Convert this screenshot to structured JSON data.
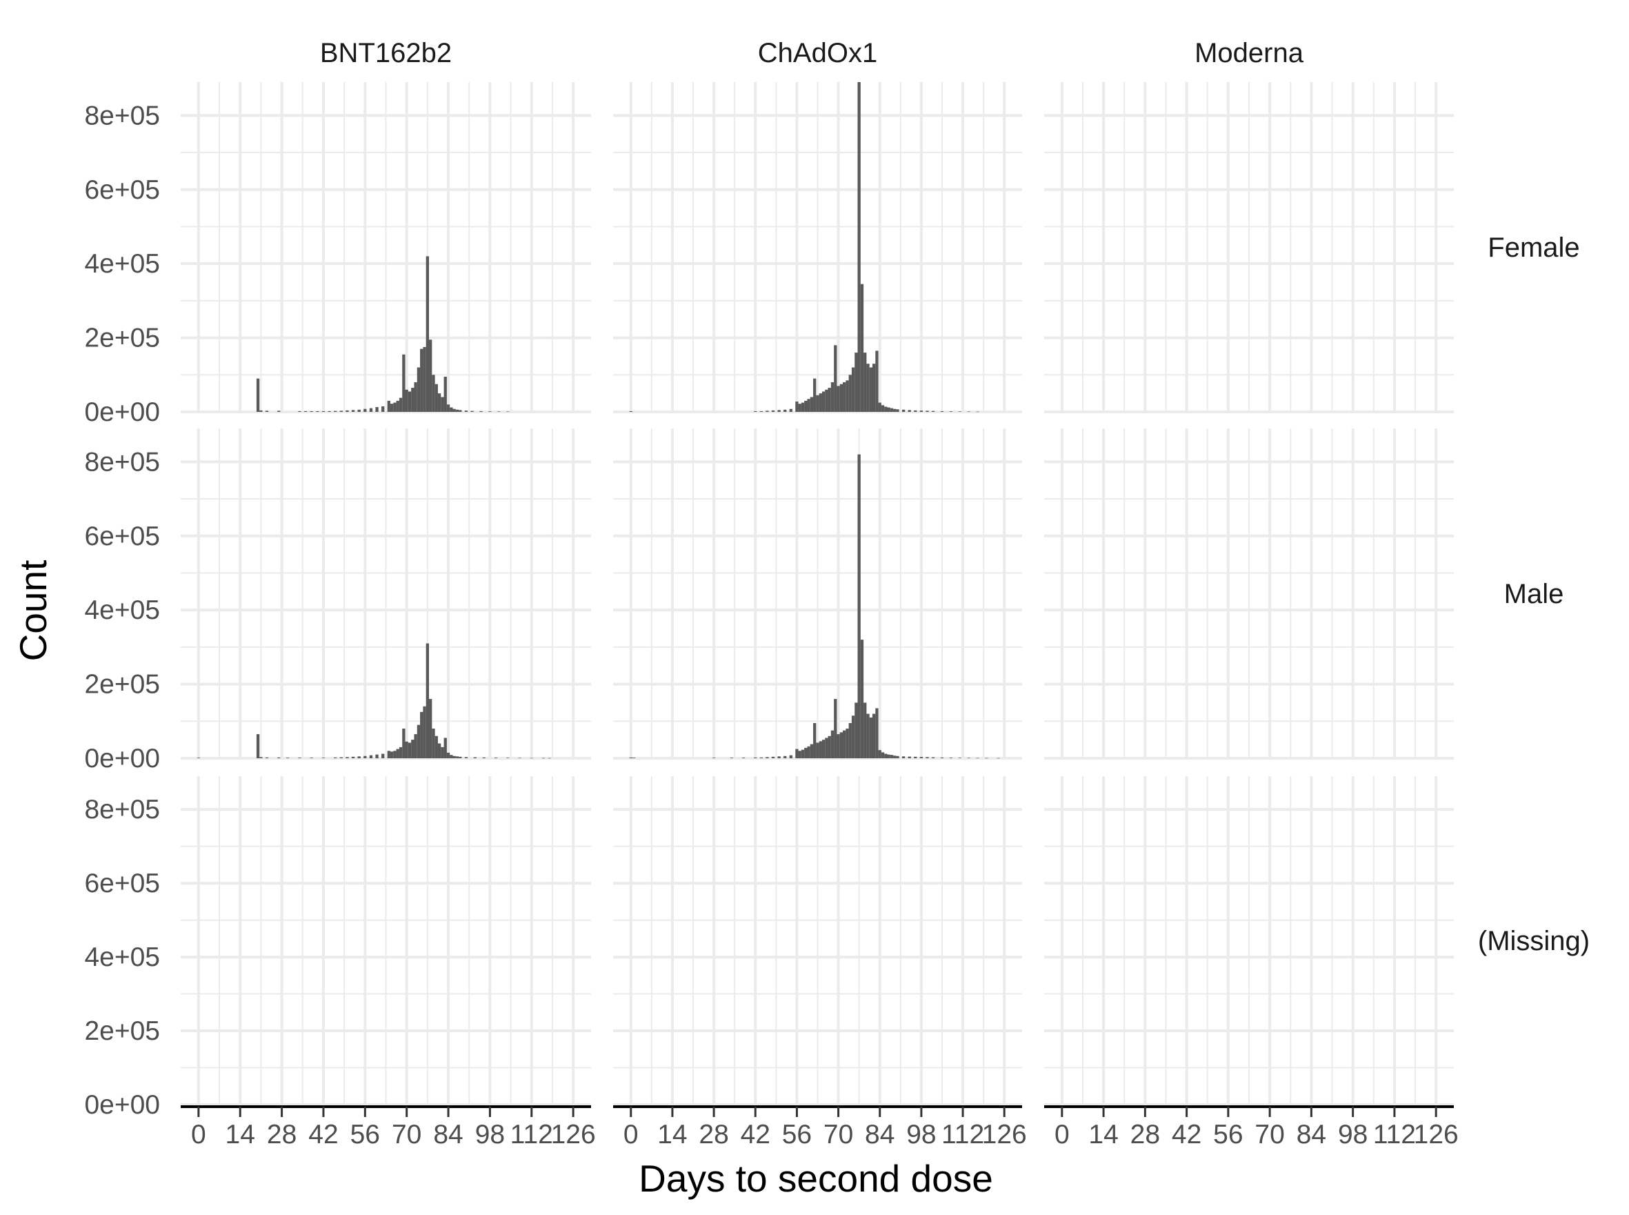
{
  "chart_data": {
    "type": "bar",
    "layout": "facet-grid",
    "xlabel": "Days to second dose",
    "ylabel": "Count",
    "x_ticks": [
      0,
      14,
      28,
      42,
      56,
      70,
      84,
      98,
      112,
      126
    ],
    "x_tick_labels": [
      "0",
      "14",
      "28",
      "42",
      "56",
      "70",
      "84",
      "98",
      "112",
      "126"
    ],
    "xlim": [
      -6,
      132
    ],
    "y_ticks": [
      0,
      200000,
      400000,
      600000,
      800000
    ],
    "y_tick_labels": [
      "0e+00",
      "2e+05",
      "4e+05",
      "6e+05",
      "8e+05"
    ],
    "ylim": [
      0,
      890000
    ],
    "grid": true,
    "column_labels": [
      "BNT162b2",
      "ChAdOx1",
      "Moderna"
    ],
    "row_labels": [
      "Female",
      "Male",
      "(Missing)"
    ],
    "bar_color": "#595959",
    "panels": [
      {
        "column": "BNT162b2",
        "row": "Female",
        "bins": [
          [
            20,
            90000
          ],
          [
            21,
            4000
          ],
          [
            23,
            3000
          ],
          [
            27,
            3000
          ],
          [
            34,
            2000
          ],
          [
            36,
            2000
          ],
          [
            38,
            2000
          ],
          [
            40,
            2000
          ],
          [
            42,
            2000
          ],
          [
            44,
            2000
          ],
          [
            46,
            2500
          ],
          [
            48,
            3000
          ],
          [
            50,
            4000
          ],
          [
            52,
            5000
          ],
          [
            54,
            6000
          ],
          [
            56,
            8000
          ],
          [
            58,
            10000
          ],
          [
            60,
            13000
          ],
          [
            62,
            15000
          ],
          [
            64,
            30000
          ],
          [
            65,
            22000
          ],
          [
            66,
            25000
          ],
          [
            67,
            30000
          ],
          [
            68,
            38000
          ],
          [
            69,
            155000
          ],
          [
            70,
            60000
          ],
          [
            71,
            55000
          ],
          [
            72,
            65000
          ],
          [
            73,
            80000
          ],
          [
            74,
            120000
          ],
          [
            75,
            170000
          ],
          [
            76,
            175000
          ],
          [
            77,
            420000
          ],
          [
            78,
            195000
          ],
          [
            79,
            100000
          ],
          [
            80,
            75000
          ],
          [
            81,
            50000
          ],
          [
            82,
            40000
          ],
          [
            83,
            95000
          ],
          [
            84,
            20000
          ],
          [
            85,
            12000
          ],
          [
            86,
            8000
          ],
          [
            87,
            6000
          ],
          [
            88,
            5000
          ],
          [
            90,
            3500
          ],
          [
            92,
            2500
          ],
          [
            95,
            2000
          ],
          [
            98,
            1500
          ],
          [
            101,
            1200
          ],
          [
            104,
            1000
          ]
        ]
      },
      {
        "column": "ChAdOx1",
        "row": "Female",
        "bins": [
          [
            0,
            2000
          ],
          [
            42,
            2000
          ],
          [
            44,
            2000
          ],
          [
            46,
            3000
          ],
          [
            48,
            4000
          ],
          [
            50,
            5000
          ],
          [
            52,
            6000
          ],
          [
            54,
            8000
          ],
          [
            56,
            28000
          ],
          [
            57,
            22000
          ],
          [
            58,
            25000
          ],
          [
            59,
            30000
          ],
          [
            60,
            35000
          ],
          [
            61,
            40000
          ],
          [
            62,
            90000
          ],
          [
            63,
            45000
          ],
          [
            64,
            50000
          ],
          [
            65,
            55000
          ],
          [
            66,
            60000
          ],
          [
            67,
            65000
          ],
          [
            68,
            80000
          ],
          [
            69,
            180000
          ],
          [
            70,
            70000
          ],
          [
            71,
            75000
          ],
          [
            72,
            80000
          ],
          [
            73,
            85000
          ],
          [
            74,
            100000
          ],
          [
            75,
            120000
          ],
          [
            76,
            160000
          ],
          [
            77,
            890000
          ],
          [
            78,
            345000
          ],
          [
            79,
            160000
          ],
          [
            80,
            130000
          ],
          [
            81,
            120000
          ],
          [
            82,
            130000
          ],
          [
            83,
            165000
          ],
          [
            84,
            25000
          ],
          [
            85,
            18000
          ],
          [
            86,
            14000
          ],
          [
            87,
            12000
          ],
          [
            88,
            10000
          ],
          [
            89,
            8000
          ],
          [
            90,
            7000
          ],
          [
            92,
            6000
          ],
          [
            94,
            5000
          ],
          [
            96,
            4000
          ],
          [
            98,
            3500
          ],
          [
            100,
            3000
          ],
          [
            102,
            2500
          ],
          [
            105,
            2000
          ],
          [
            108,
            1500
          ],
          [
            111,
            1200
          ],
          [
            114,
            1000
          ],
          [
            117,
            800
          ]
        ]
      },
      {
        "column": "Moderna",
        "row": "Female",
        "bins": []
      },
      {
        "column": "BNT162b2",
        "row": "Male",
        "bins": [
          [
            0,
            1500
          ],
          [
            20,
            65000
          ],
          [
            21,
            3000
          ],
          [
            23,
            2000
          ],
          [
            27,
            2000
          ],
          [
            30,
            1500
          ],
          [
            34,
            1500
          ],
          [
            38,
            1500
          ],
          [
            42,
            1500
          ],
          [
            46,
            2000
          ],
          [
            48,
            2500
          ],
          [
            50,
            3000
          ],
          [
            52,
            4000
          ],
          [
            54,
            5000
          ],
          [
            56,
            6000
          ],
          [
            58,
            8000
          ],
          [
            60,
            10000
          ],
          [
            62,
            12000
          ],
          [
            64,
            20000
          ],
          [
            65,
            18000
          ],
          [
            66,
            20000
          ],
          [
            67,
            25000
          ],
          [
            68,
            30000
          ],
          [
            69,
            80000
          ],
          [
            70,
            45000
          ],
          [
            71,
            42000
          ],
          [
            72,
            50000
          ],
          [
            73,
            65000
          ],
          [
            74,
            90000
          ],
          [
            75,
            125000
          ],
          [
            76,
            140000
          ],
          [
            77,
            310000
          ],
          [
            78,
            160000
          ],
          [
            79,
            80000
          ],
          [
            80,
            60000
          ],
          [
            81,
            40000
          ],
          [
            82,
            30000
          ],
          [
            83,
            55000
          ],
          [
            84,
            15000
          ],
          [
            85,
            9000
          ],
          [
            86,
            6000
          ],
          [
            87,
            5000
          ],
          [
            88,
            4000
          ],
          [
            90,
            3000
          ],
          [
            93,
            2500
          ],
          [
            96,
            2000
          ],
          [
            100,
            1500
          ],
          [
            104,
            1200
          ],
          [
            108,
            1000
          ],
          [
            112,
            800
          ],
          [
            116,
            700
          ],
          [
            118,
            600
          ]
        ]
      },
      {
        "column": "ChAdOx1",
        "row": "Male",
        "bins": [
          [
            0,
            2000
          ],
          [
            1,
            1500
          ],
          [
            28,
            1500
          ],
          [
            34,
            1500
          ],
          [
            38,
            1500
          ],
          [
            42,
            2000
          ],
          [
            44,
            2000
          ],
          [
            46,
            3000
          ],
          [
            48,
            4000
          ],
          [
            50,
            5000
          ],
          [
            52,
            6000
          ],
          [
            54,
            8000
          ],
          [
            56,
            25000
          ],
          [
            57,
            20000
          ],
          [
            58,
            23000
          ],
          [
            59,
            28000
          ],
          [
            60,
            32000
          ],
          [
            61,
            38000
          ],
          [
            62,
            95000
          ],
          [
            63,
            42000
          ],
          [
            64,
            46000
          ],
          [
            65,
            50000
          ],
          [
            66,
            55000
          ],
          [
            67,
            60000
          ],
          [
            68,
            75000
          ],
          [
            69,
            160000
          ],
          [
            70,
            65000
          ],
          [
            71,
            70000
          ],
          [
            72,
            75000
          ],
          [
            73,
            80000
          ],
          [
            74,
            95000
          ],
          [
            75,
            115000
          ],
          [
            76,
            150000
          ],
          [
            77,
            820000
          ],
          [
            78,
            320000
          ],
          [
            79,
            150000
          ],
          [
            80,
            120000
          ],
          [
            81,
            110000
          ],
          [
            82,
            120000
          ],
          [
            83,
            135000
          ],
          [
            84,
            22000
          ],
          [
            85,
            16000
          ],
          [
            86,
            12000
          ],
          [
            87,
            10000
          ],
          [
            88,
            9000
          ],
          [
            89,
            7000
          ],
          [
            90,
            6000
          ],
          [
            92,
            5000
          ],
          [
            94,
            4500
          ],
          [
            96,
            4000
          ],
          [
            98,
            3500
          ],
          [
            100,
            3000
          ],
          [
            102,
            2500
          ],
          [
            105,
            2000
          ],
          [
            108,
            1500
          ],
          [
            111,
            1200
          ],
          [
            114,
            1000
          ],
          [
            117,
            800
          ],
          [
            120,
            700
          ],
          [
            124,
            600
          ]
        ]
      },
      {
        "column": "Moderna",
        "row": "Male",
        "bins": []
      },
      {
        "column": "BNT162b2",
        "row": "(Missing)",
        "bins": []
      },
      {
        "column": "ChAdOx1",
        "row": "(Missing)",
        "bins": []
      },
      {
        "column": "Moderna",
        "row": "(Missing)",
        "bins": []
      }
    ]
  }
}
